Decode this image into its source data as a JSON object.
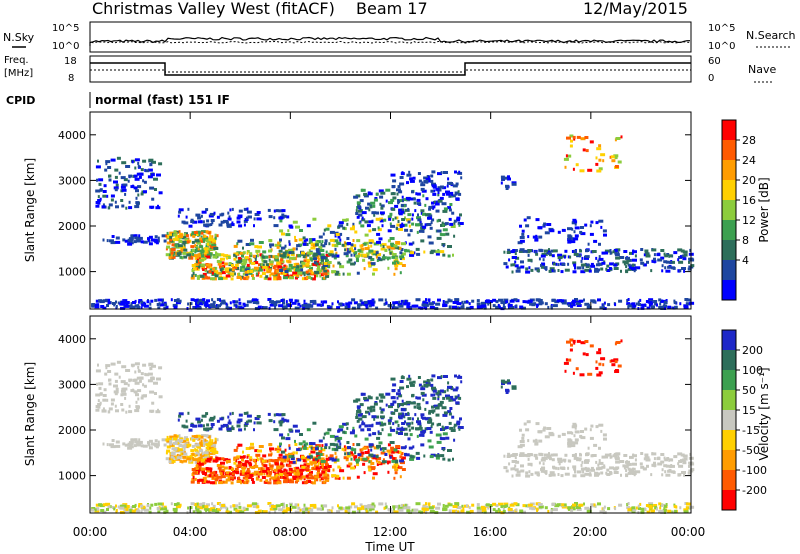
{
  "header": {
    "station": "Christmas Valley West (fitACF)",
    "beam": "Beam 17",
    "date": "12/May/2015"
  },
  "top_panels": {
    "nsky_label": "N.Sky",
    "nsky_ticks": [
      "10^5",
      "10^0"
    ],
    "nsearch_label": "N.Search",
    "nsearch_ticks": [
      "10^5",
      "10^0"
    ],
    "freq_label_line1": "Freq.",
    "freq_label_line2": "[MHz]",
    "freq_ticks": [
      "18",
      "8"
    ],
    "nave_label": "Nave",
    "nave_ticks": [
      "60",
      "0"
    ],
    "cpid_label": "CPID",
    "cpid_text": "normal (fast) 151 IF"
  },
  "chart_data": [
    {
      "type": "heatmap",
      "panel": "power",
      "ylabel": "Slant Range [km]",
      "y_ticks": [
        1000,
        2000,
        3000,
        4000
      ],
      "ylim": [
        180,
        4500
      ],
      "x_ticks_hours": [
        0,
        4,
        8,
        12,
        16,
        20,
        24
      ],
      "colorbar": {
        "label": "Power [dB]",
        "ticks": [
          "28",
          "24",
          "20",
          "16",
          "12",
          "8",
          "4"
        ],
        "colors": [
          "#ff0000",
          "#ff5a00",
          "#ff9c00",
          "#ffd000",
          "#8ccc3c",
          "#3ca050",
          "#2d6e5a",
          "#1e46a0",
          "#0000ff"
        ]
      }
    },
    {
      "type": "heatmap",
      "panel": "velocity",
      "ylabel": "Slant Range [km]",
      "y_ticks": [
        1000,
        2000,
        3000,
        4000
      ],
      "ylim": [
        180,
        4500
      ],
      "x_ticks_hours": [
        0,
        4,
        8,
        12,
        16,
        20,
        24
      ],
      "colorbar": {
        "label": "Velocity [m s⁻¹]",
        "ticks": [
          "200",
          "100",
          "50",
          "15",
          "-15",
          "-50",
          "-100",
          "-200"
        ],
        "colors": [
          "#1e28c8",
          "#2d6e5a",
          "#3ca050",
          "#8ccc3c",
          "#c8c8c0",
          "#ffd000",
          "#ff9c00",
          "#ff5a00",
          "#ff0000"
        ]
      }
    }
  ],
  "x_axis": {
    "tick_labels": [
      "00:00",
      "04:00",
      "08:00",
      "12:00",
      "16:00",
      "20:00",
      "00:00"
    ],
    "label": "Time UT"
  }
}
